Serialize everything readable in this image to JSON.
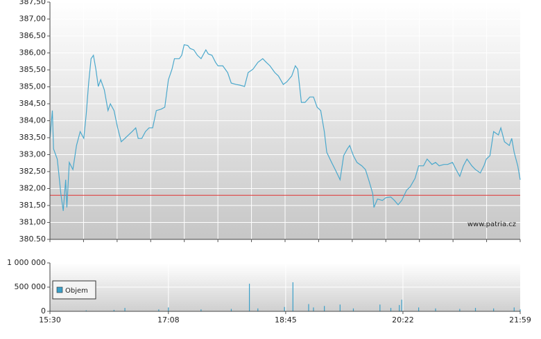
{
  "chart_data": [
    {
      "type": "line",
      "color": "#4aa8cc",
      "grid": true,
      "watermark": "www.patria.cz",
      "reference_line": 381.8,
      "reference_color": "#e03030",
      "xlim": [
        "15:30",
        "21:59"
      ],
      "ylim": [
        380.5,
        387.5
      ],
      "yticks": [
        {
          "value": 380.5,
          "label": "380.50"
        },
        {
          "value": 381,
          "label": "381,00"
        },
        {
          "value": 381.5,
          "label": "381,50"
        },
        {
          "value": 382,
          "label": "382,00"
        },
        {
          "value": 382.5,
          "label": "382,50"
        },
        {
          "value": 383,
          "label": "383,00"
        },
        {
          "value": 383.5,
          "label": "383,50"
        },
        {
          "value": 384,
          "label": "384,00"
        },
        {
          "value": 384.5,
          "label": "384,50"
        },
        {
          "value": 385,
          "label": "385,00"
        },
        {
          "value": 385.5,
          "label": "385,50"
        },
        {
          "value": 386,
          "label": "386,00"
        },
        {
          "value": 386.5,
          "label": "386,50"
        },
        {
          "value": 387,
          "label": "387,00"
        },
        {
          "value": 387.5,
          "label": "387,50"
        }
      ],
      "x": [
        "15:30",
        "15:32",
        "15:33",
        "15:36",
        "15:37",
        "15:39",
        "15:41",
        "15:43",
        "15:44",
        "15:46",
        "15:49",
        "15:52",
        "15:55",
        "15:58",
        "16:00",
        "16:02",
        "16:04",
        "16:06",
        "16:08",
        "16:10",
        "16:12",
        "16:15",
        "16:18",
        "16:20",
        "16:23",
        "16:26",
        "16:29",
        "16:32",
        "16:35",
        "16:38",
        "16:41",
        "16:43",
        "16:46",
        "16:49",
        "16:52",
        "16:55",
        "16:58",
        "17:02",
        "17:05",
        "17:08",
        "17:11",
        "17:13",
        "17:17",
        "17:19",
        "17:21",
        "17:24",
        "17:26",
        "17:29",
        "17:32",
        "17:35",
        "17:39",
        "17:41",
        "17:44",
        "17:47",
        "17:49",
        "17:53",
        "17:57",
        "18:00",
        "18:04",
        "18:07",
        "18:11",
        "18:14",
        "18:18",
        "18:22",
        "18:26",
        "18:29",
        "18:32",
        "18:36",
        "18:39",
        "18:43",
        "18:46",
        "18:50",
        "18:53",
        "18:55",
        "18:58",
        "19:01",
        "19:05",
        "19:08",
        "19:11",
        "19:14",
        "19:17",
        "19:19",
        "19:23",
        "19:26",
        "19:30",
        "19:33",
        "19:36",
        "19:38",
        "19:41",
        "19:44",
        "19:48",
        "19:51",
        "19:54",
        "19:57",
        "19:58",
        "20:01",
        "20:05",
        "20:08",
        "20:12",
        "20:15",
        "20:18",
        "20:21",
        "20:25",
        "20:28",
        "20:32",
        "20:35",
        "20:39",
        "20:42",
        "20:46",
        "20:49",
        "20:52",
        "20:56",
        "20:59",
        "21:03",
        "21:06",
        "21:09",
        "21:12",
        "21:15",
        "21:19",
        "21:22",
        "21:26",
        "21:29",
        "21:31",
        "21:34",
        "21:37",
        "21:41",
        "21:43",
        "21:46",
        "21:50",
        "21:52",
        "21:54",
        "21:57",
        "21:59"
      ],
      "values": [
        383.48,
        384.3,
        383.17,
        382.87,
        382.56,
        381.85,
        381.34,
        382.26,
        381.44,
        382.77,
        382.56,
        383.27,
        383.68,
        383.48,
        384.19,
        385.11,
        385.83,
        385.93,
        385.52,
        385.01,
        385.21,
        384.91,
        384.3,
        384.5,
        384.3,
        383.79,
        383.38,
        383.48,
        383.58,
        383.68,
        383.79,
        383.48,
        383.48,
        383.68,
        383.79,
        383.79,
        384.3,
        384.34,
        384.4,
        385.21,
        385.52,
        385.83,
        385.83,
        385.93,
        386.24,
        386.22,
        386.13,
        386.09,
        385.93,
        385.83,
        386.09,
        385.97,
        385.93,
        385.72,
        385.62,
        385.62,
        385.42,
        385.11,
        385.07,
        385.05,
        385.01,
        385.42,
        385.52,
        385.72,
        385.83,
        385.72,
        385.62,
        385.42,
        385.32,
        385.07,
        385.15,
        385.32,
        385.62,
        385.52,
        384.54,
        384.54,
        384.7,
        384.7,
        384.4,
        384.3,
        383.68,
        383.07,
        382.77,
        382.56,
        382.26,
        382.97,
        383.17,
        383.27,
        382.97,
        382.77,
        382.67,
        382.56,
        382.22,
        381.85,
        381.44,
        381.69,
        381.65,
        381.73,
        381.75,
        381.65,
        381.52,
        381.65,
        381.95,
        382.05,
        382.3,
        382.67,
        382.67,
        382.87,
        382.71,
        382.77,
        382.67,
        382.71,
        382.71,
        382.77,
        382.56,
        382.36,
        382.67,
        382.87,
        382.67,
        382.56,
        382.46,
        382.67,
        382.87,
        382.97,
        383.68,
        383.58,
        383.79,
        383.38,
        383.27,
        383.48,
        383.07,
        382.67,
        382.26
      ]
    },
    {
      "type": "bar",
      "grid": true,
      "xlim": [
        "15:30",
        "21:59"
      ],
      "xticks": [
        "15:30",
        "17:08",
        "18:45",
        "20:22",
        "21:59"
      ],
      "ylim": [
        0,
        1000000
      ],
      "yticks": [
        0,
        {
          "value": 500000,
          "label": "500 000"
        },
        {
          "value": 1000000,
          "label": "1 000 000"
        }
      ],
      "x": [
        "15:30",
        "16:00",
        "16:23",
        "16:32",
        "17:00",
        "17:08",
        "17:35",
        "18:00",
        "18:15",
        "18:22",
        "18:44",
        "18:51",
        "19:04",
        "19:08",
        "19:17",
        "19:30",
        "19:41",
        "20:03",
        "20:12",
        "20:19",
        "20:21",
        "20:35",
        "20:49",
        "21:09",
        "21:22",
        "21:37",
        "21:54",
        "21:59"
      ],
      "series": [
        {
          "name": "Objem",
          "color": "#3a9fc8",
          "values": [
            30000,
            20000,
            30000,
            70000,
            40000,
            80000,
            40000,
            50000,
            570000,
            60000,
            90000,
            600000,
            150000,
            80000,
            110000,
            140000,
            60000,
            140000,
            70000,
            130000,
            240000,
            80000,
            60000,
            50000,
            70000,
            60000,
            80000,
            40000
          ]
        }
      ]
    }
  ]
}
